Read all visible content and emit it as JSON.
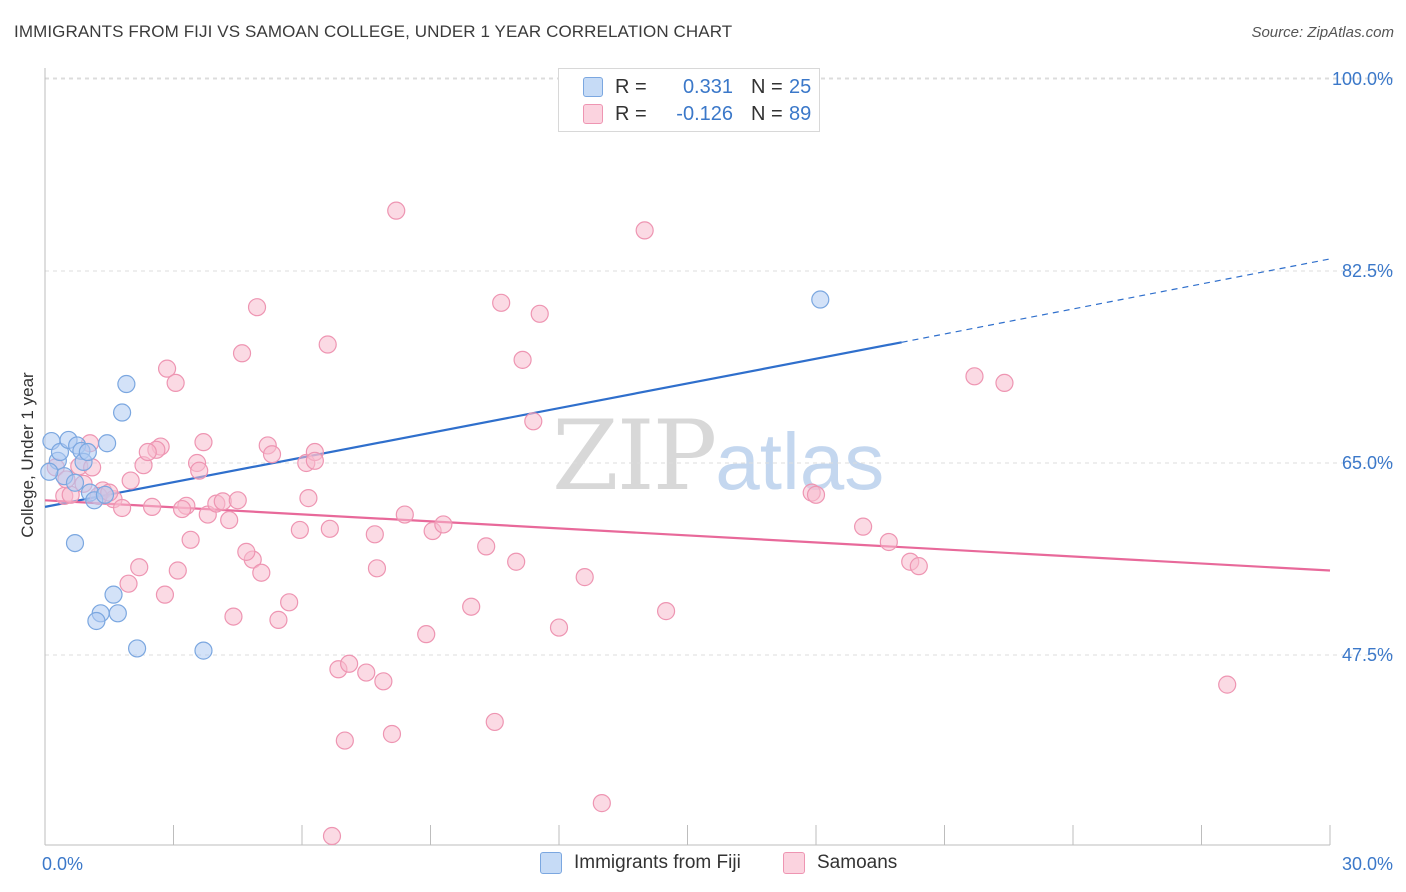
{
  "header": {
    "title": "IMMIGRANTS FROM FIJI VS SAMOAN COLLEGE, UNDER 1 YEAR CORRELATION CHART",
    "source": "Source: ZipAtlas.com"
  },
  "legend": {
    "rows": [
      {
        "r_label": "R =",
        "r_value": "0.331",
        "n_label": "N =",
        "n_value": "25"
      },
      {
        "r_label": "R =",
        "r_value": "-0.126",
        "n_label": "N =",
        "n_value": "89"
      }
    ]
  },
  "bottom_legend": {
    "series0": "Immigrants from Fiji",
    "series1": "Samoans"
  },
  "watermark": {
    "zip": "ZIP",
    "atlas": "atlas"
  },
  "colors": {
    "fiji_fill": "#aecbf2",
    "fiji_stroke": "#7ba7e0",
    "fiji_line": "#2f6fcc",
    "samoan_fill": "#f7bccd",
    "samoan_stroke": "#ee95b2",
    "samoan_line": "#e8699a",
    "tick_label": "#3b78c9"
  },
  "chart_data": {
    "type": "scatter",
    "title": "IMMIGRANTS FROM FIJI VS SAMOAN COLLEGE, UNDER 1 YEAR CORRELATION CHART",
    "xlabel": "",
    "ylabel": "College, Under 1 year",
    "xlim": [
      0,
      30
    ],
    "ylim": [
      31,
      102
    ],
    "x_tick_labels": [
      {
        "value": 0,
        "label": "0.0%"
      },
      {
        "value": 30,
        "label": "30.0%"
      }
    ],
    "y_ticks": [
      {
        "value": 47.5,
        "label": "47.5%"
      },
      {
        "value": 65.0,
        "label": "65.0%"
      },
      {
        "value": 82.5,
        "label": "82.5%"
      },
      {
        "value": 100.0,
        "label": "100.0%"
      }
    ],
    "grid": true,
    "legend_position": "top-center",
    "series": [
      {
        "name": "Immigrants from Fiji",
        "color": "#aecbf2",
        "points": [
          [
            0.15,
            67.0
          ],
          [
            0.3,
            65.2
          ],
          [
            0.35,
            66.0
          ],
          [
            0.45,
            63.8
          ],
          [
            0.55,
            67.1
          ],
          [
            0.7,
            63.2
          ],
          [
            0.75,
            66.6
          ],
          [
            0.85,
            66.1
          ],
          [
            0.9,
            65.1
          ],
          [
            1.0,
            66.0
          ],
          [
            1.05,
            62.3
          ],
          [
            1.15,
            61.6
          ],
          [
            1.4,
            62.1
          ],
          [
            1.45,
            66.8
          ],
          [
            1.9,
            72.2
          ],
          [
            1.8,
            69.6
          ],
          [
            0.7,
            57.7
          ],
          [
            1.6,
            53.0
          ],
          [
            1.7,
            51.3
          ],
          [
            1.3,
            51.3
          ],
          [
            1.2,
            50.6
          ],
          [
            2.15,
            48.1
          ],
          [
            3.7,
            47.9
          ],
          [
            18.1,
            79.9
          ],
          [
            0.1,
            64.2
          ]
        ],
        "trend": {
          "x": [
            0,
            20.0
          ],
          "y": [
            61.0,
            76.0
          ]
        },
        "trend_extension": {
          "x": [
            20.0,
            30.0
          ],
          "y": [
            76.0,
            83.6
          ]
        }
      },
      {
        "name": "Samoans",
        "color": "#f7bccd",
        "points": [
          [
            0.25,
            64.6
          ],
          [
            0.45,
            62.0
          ],
          [
            0.6,
            62.1
          ],
          [
            0.8,
            64.7
          ],
          [
            1.1,
            64.6
          ],
          [
            1.05,
            66.8
          ],
          [
            1.35,
            62.5
          ],
          [
            1.6,
            61.7
          ],
          [
            1.8,
            60.9
          ],
          [
            2.0,
            63.4
          ],
          [
            2.3,
            64.8
          ],
          [
            2.5,
            61.0
          ],
          [
            2.7,
            66.5
          ],
          [
            2.6,
            66.2
          ],
          [
            2.85,
            73.6
          ],
          [
            3.05,
            72.3
          ],
          [
            3.3,
            61.1
          ],
          [
            3.55,
            65.0
          ],
          [
            3.6,
            64.3
          ],
          [
            3.7,
            66.9
          ],
          [
            3.8,
            60.3
          ],
          [
            4.0,
            61.3
          ],
          [
            4.15,
            61.5
          ],
          [
            4.3,
            59.8
          ],
          [
            4.5,
            61.6
          ],
          [
            4.6,
            75.0
          ],
          [
            4.85,
            56.2
          ],
          [
            5.05,
            55.0
          ],
          [
            5.2,
            66.6
          ],
          [
            5.3,
            65.8
          ],
          [
            4.95,
            79.2
          ],
          [
            5.45,
            50.7
          ],
          [
            5.7,
            52.3
          ],
          [
            5.95,
            58.9
          ],
          [
            6.1,
            65.0
          ],
          [
            6.15,
            61.8
          ],
          [
            6.3,
            66.0
          ],
          [
            6.6,
            75.8
          ],
          [
            6.65,
            59.0
          ],
          [
            6.7,
            31.0
          ],
          [
            6.85,
            46.2
          ],
          [
            7.0,
            39.7
          ],
          [
            7.1,
            46.7
          ],
          [
            7.5,
            45.9
          ],
          [
            7.7,
            58.5
          ],
          [
            7.75,
            55.4
          ],
          [
            7.9,
            45.1
          ],
          [
            8.1,
            40.3
          ],
          [
            8.2,
            88.0
          ],
          [
            8.4,
            60.3
          ],
          [
            8.9,
            49.4
          ],
          [
            9.05,
            58.8
          ],
          [
            9.3,
            59.4
          ],
          [
            9.95,
            51.9
          ],
          [
            10.3,
            57.4
          ],
          [
            10.5,
            41.4
          ],
          [
            10.65,
            79.6
          ],
          [
            11.0,
            56.0
          ],
          [
            11.15,
            74.4
          ],
          [
            11.4,
            68.8
          ],
          [
            11.55,
            78.6
          ],
          [
            12.0,
            50.0
          ],
          [
            12.6,
            54.6
          ],
          [
            13.0,
            34.0
          ],
          [
            14.0,
            86.2
          ],
          [
            14.5,
            51.5
          ],
          [
            17.9,
            62.3
          ],
          [
            18.0,
            62.1
          ],
          [
            19.1,
            59.2
          ],
          [
            19.7,
            57.8
          ],
          [
            20.2,
            56.0
          ],
          [
            20.4,
            55.6
          ],
          [
            21.7,
            72.9
          ],
          [
            22.4,
            72.3
          ],
          [
            27.6,
            44.8
          ],
          [
            1.95,
            54.0
          ],
          [
            2.2,
            55.5
          ],
          [
            2.8,
            53.0
          ],
          [
            3.1,
            55.2
          ],
          [
            3.4,
            58.0
          ],
          [
            4.4,
            51.0
          ],
          [
            6.3,
            65.2
          ],
          [
            0.9,
            63.1
          ],
          [
            1.25,
            62.0
          ],
          [
            0.5,
            63.5
          ],
          [
            2.4,
            66.0
          ],
          [
            3.2,
            60.8
          ],
          [
            4.7,
            56.9
          ],
          [
            1.5,
            62.3
          ]
        ],
        "trend": {
          "x": [
            0,
            30.0
          ],
          "y": [
            61.6,
            55.2
          ]
        }
      }
    ]
  }
}
